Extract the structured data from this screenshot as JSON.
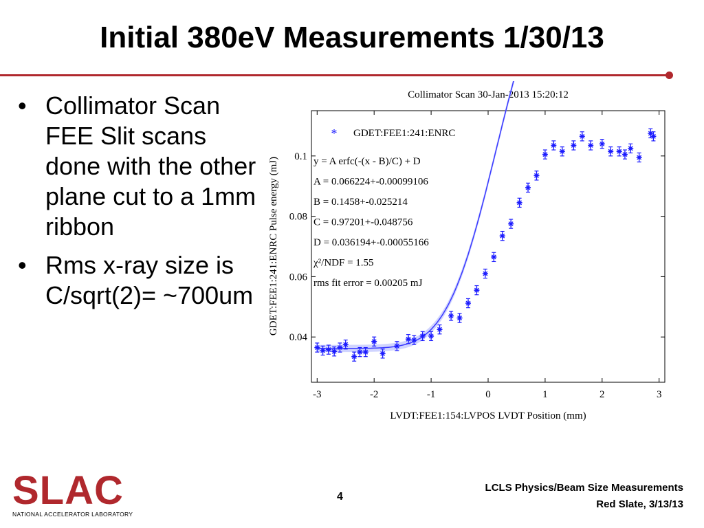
{
  "slide": {
    "title": "Initial 380eV Measurements 1/30/13",
    "bullets": [
      "Collimator Scan FEE Slit scans done with the other plane cut to a 1mm ribbon",
      "Rms x-ray size is C/sqrt(2)= ~700um"
    ],
    "bullet_glyph": "•",
    "page_number": "4",
    "footer_line1": "LCLS Physics/Beam Size Measurements",
    "footer_line2": "Red Slate, 3/13/13",
    "logo_text": "SLAC",
    "logo_subtext": "NATIONAL ACCELERATOR LABORATORY",
    "accent_color": "#b0282d"
  },
  "chart_data": {
    "type": "scatter",
    "title": "Collimator Scan 30-Jan-2013 15:20:12",
    "xlabel": "LVDT:FEE1:154:LVPOS LVDT Position (mm)",
    "ylabel": "GDET:FEE1:241:ENRC Pulse energy (mJ)",
    "xlim": [
      -3.1,
      3.1
    ],
    "ylim": [
      0.025,
      0.115
    ],
    "xticks": [
      -3,
      -2,
      -1,
      0,
      1,
      2,
      3
    ],
    "xtick_labels": [
      "-3",
      "-2",
      "-1",
      "0",
      "1",
      "2",
      "3"
    ],
    "yticks": [
      0.04,
      0.06,
      0.08,
      0.1
    ],
    "ytick_labels": [
      "0.04",
      "0.06",
      "0.08",
      "0.1"
    ],
    "legend": "GDET:FEE1:241:ENRC",
    "legend_position": "top-left",
    "fit_text": [
      "y = A erfc(-(x - B)/C) + D",
      "A = 0.066224+-0.00099106",
      "B =  0.1458+-0.025214",
      "C = 0.97201+-0.048756",
      "D = 0.036194+-0.00055166",
      "χ²/NDF =  1.55",
      "rms fit error = 0.00205 mJ"
    ],
    "fit": {
      "A": 0.066224,
      "B": 0.1458,
      "C": 0.97201,
      "D": 0.036194
    },
    "series": [
      {
        "name": "GDET:FEE1:241:ENRC",
        "color": "#1a1aff",
        "x": [
          -3.0,
          -2.9,
          -2.8,
          -2.7,
          -2.6,
          -2.5,
          -2.35,
          -2.25,
          -2.15,
          -2.0,
          -1.85,
          -1.6,
          -1.4,
          -1.3,
          -1.15,
          -1.0,
          -0.85,
          -0.65,
          -0.5,
          -0.35,
          -0.2,
          -0.05,
          0.1,
          0.25,
          0.4,
          0.55,
          0.7,
          0.85,
          1.0,
          1.15,
          1.3,
          1.5,
          1.65,
          1.8,
          2.0,
          2.15,
          2.3,
          2.4,
          2.5,
          2.65,
          2.85,
          2.9
        ],
        "y": [
          0.0365,
          0.0355,
          0.0358,
          0.0352,
          0.0365,
          0.0375,
          0.0335,
          0.035,
          0.035,
          0.0385,
          0.0345,
          0.037,
          0.0393,
          0.039,
          0.0403,
          0.0403,
          0.0425,
          0.047,
          0.0463,
          0.0512,
          0.0555,
          0.061,
          0.0665,
          0.0735,
          0.0775,
          0.0845,
          0.0895,
          0.0935,
          0.1005,
          0.1035,
          0.1015,
          0.1035,
          0.1065,
          0.1035,
          0.104,
          0.1015,
          0.1015,
          0.1005,
          0.1025,
          0.0995,
          0.1075,
          0.1065
        ],
        "err": 0.0015
      }
    ]
  }
}
